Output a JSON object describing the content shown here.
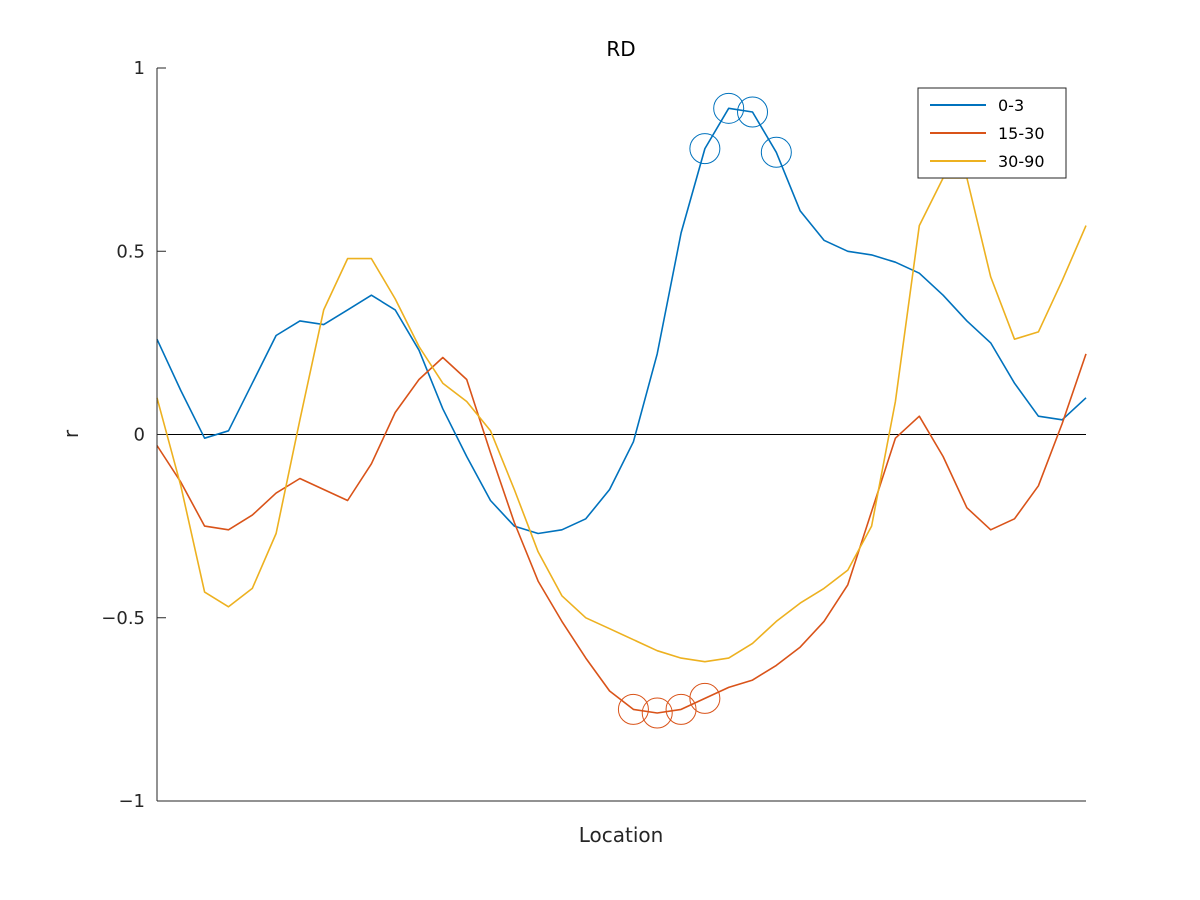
{
  "chart_data": {
    "type": "line",
    "title": "RD",
    "xlabel": "Location",
    "ylabel": "r",
    "xlim": [
      1,
      40
    ],
    "ylim": [
      -1,
      1
    ],
    "yticks": [
      -1,
      -0.5,
      0,
      0.5,
      1
    ],
    "ytick_labels": [
      "−1",
      "−0.5",
      "0",
      "0.5",
      "1"
    ],
    "xticks_shown": false,
    "grid": false,
    "zero_line": true,
    "legend_position": "top-right",
    "x": [
      1,
      2,
      3,
      4,
      5,
      6,
      7,
      8,
      9,
      10,
      11,
      12,
      13,
      14,
      15,
      16,
      17,
      18,
      19,
      20,
      21,
      22,
      23,
      24,
      25,
      26,
      27,
      28,
      29,
      30,
      31,
      32,
      33,
      34,
      35,
      36,
      37,
      38,
      39,
      40
    ],
    "series": [
      {
        "name": "0-3",
        "color": "#0072BD",
        "values": [
          0.26,
          0.12,
          -0.01,
          0.01,
          0.14,
          0.27,
          0.31,
          0.3,
          0.34,
          0.38,
          0.34,
          0.23,
          0.07,
          -0.06,
          -0.18,
          -0.25,
          -0.27,
          -0.26,
          -0.23,
          -0.15,
          -0.02,
          0.22,
          0.55,
          0.78,
          0.89,
          0.88,
          0.77,
          0.61,
          0.53,
          0.5,
          0.49,
          0.47,
          0.44,
          0.38,
          0.31,
          0.25,
          0.14,
          0.05,
          0.04,
          0.1
        ],
        "markers": [
          24,
          25,
          26,
          27
        ]
      },
      {
        "name": "15-30",
        "color": "#D95319",
        "values": [
          -0.03,
          -0.13,
          -0.25,
          -0.26,
          -0.22,
          -0.16,
          -0.12,
          -0.15,
          -0.18,
          -0.08,
          0.06,
          0.15,
          0.21,
          0.15,
          -0.05,
          -0.24,
          -0.4,
          -0.51,
          -0.61,
          -0.7,
          -0.75,
          -0.76,
          -0.75,
          -0.72,
          -0.69,
          -0.67,
          -0.63,
          -0.58,
          -0.51,
          -0.41,
          -0.21,
          -0.01,
          0.05,
          -0.06,
          -0.2,
          -0.26,
          -0.23,
          -0.14,
          0.03,
          0.22
        ],
        "markers": [
          21,
          22,
          23,
          24
        ]
      },
      {
        "name": "30-90",
        "color": "#EDB120",
        "values": [
          0.1,
          -0.14,
          -0.43,
          -0.47,
          -0.42,
          -0.27,
          0.04,
          0.34,
          0.48,
          0.48,
          0.37,
          0.24,
          0.14,
          0.09,
          0.01,
          -0.15,
          -0.32,
          -0.44,
          -0.5,
          -0.53,
          -0.56,
          -0.59,
          -0.61,
          -0.62,
          -0.61,
          -0.57,
          -0.51,
          -0.46,
          -0.42,
          -0.37,
          -0.25,
          0.09,
          0.57,
          0.7,
          0.7,
          0.43,
          0.26,
          0.28,
          0.42,
          0.57
        ],
        "markers": []
      }
    ]
  }
}
